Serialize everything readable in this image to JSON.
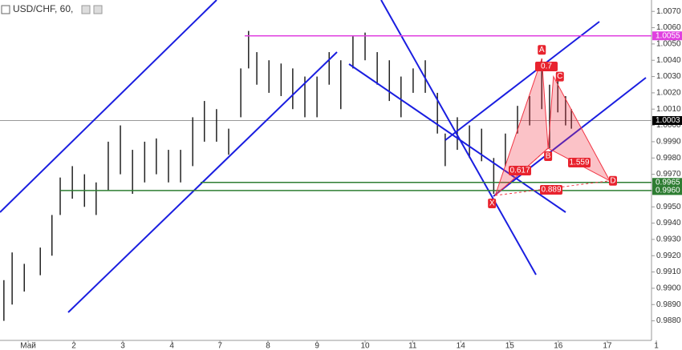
{
  "chart_data": {
    "type": "range-bar",
    "title": "USD/CHF, 60,",
    "color": "#222",
    "x": [
      0.08,
      0.25,
      0.5,
      0.83,
      1.07,
      1.24,
      1.49,
      1.74,
      1.98,
      2.23,
      2.48,
      2.73,
      2.98,
      3.22,
      3.47,
      3.72,
      3.97,
      4.21,
      4.46,
      4.71,
      4.96,
      5.12,
      5.29,
      5.54,
      5.79,
      6.03,
      6.28,
      6.53,
      6.78,
      7.02,
      7.27,
      7.52,
      7.77,
      8.02,
      8.26,
      8.51,
      8.76,
      9.01,
      9.17,
      9.42,
      9.67,
      9.92,
      10.17,
      10.41,
      10.66,
      10.91,
      11.16,
      11.32,
      11.49,
      11.65,
      11.77
    ],
    "low": [
      0.988,
      0.989,
      0.9898,
      0.9908,
      0.992,
      0.9945,
      0.9955,
      0.995,
      0.9945,
      0.996,
      0.997,
      0.9958,
      0.9965,
      0.997,
      0.9965,
      0.9965,
      0.9975,
      0.999,
      0.999,
      0.9982,
      1.0005,
      1.0035,
      1.0025,
      1.002,
      1.0018,
      1.001,
      1.0005,
      1.0005,
      1.0025,
      1.001,
      1.0035,
      1.004,
      1.0025,
      1.0015,
      1.0005,
      1.002,
      1.002,
      0.9995,
      0.9975,
      0.9985,
      0.998,
      0.9978,
      0.9958,
      0.9975,
      0.9995,
      1.0,
      1.001,
      0.9986,
      1.0008,
      1.0,
      0.9998
    ],
    "high": [
      0.9905,
      0.9922,
      0.9915,
      0.9925,
      0.9945,
      0.9968,
      0.9975,
      0.997,
      0.9965,
      0.999,
      1.0,
      0.9985,
      0.999,
      0.9992,
      0.9985,
      0.9985,
      1.0005,
      1.0015,
      1.001,
      0.9998,
      1.0035,
      1.0058,
      1.0045,
      1.004,
      1.0038,
      1.0035,
      1.003,
      1.003,
      1.0045,
      1.004,
      1.0055,
      1.0057,
      1.0045,
      1.004,
      1.003,
      1.0035,
      1.004,
      1.002,
      0.9995,
      1.0005,
      1.0,
      0.9998,
      0.998,
      0.9995,
      1.0012,
      1.0018,
      1.0041,
      1.0025,
      1.003,
      1.0018,
      1.001
    ],
    "xlim": [
      0,
      13.42
    ],
    "ylim": [
      0.9868,
      1.0077
    ],
    "xticks": [
      {
        "value": 0.58,
        "label": "Май"
      },
      {
        "value": 1.52,
        "label": "2"
      },
      {
        "value": 2.53,
        "label": "3"
      },
      {
        "value": 3.54,
        "label": "4"
      },
      {
        "value": 4.53,
        "label": "7"
      },
      {
        "value": 5.52,
        "label": "8"
      },
      {
        "value": 6.53,
        "label": "9"
      },
      {
        "value": 7.52,
        "label": "10"
      },
      {
        "value": 8.5,
        "label": "11"
      },
      {
        "value": 9.49,
        "label": "14"
      },
      {
        "value": 10.5,
        "label": "15"
      },
      {
        "value": 11.5,
        "label": "16"
      },
      {
        "value": 12.51,
        "label": "17"
      },
      {
        "value": 13.52,
        "label": "1"
      }
    ],
    "yticks": [
      {
        "value": 0.988,
        "label": "0.9880"
      },
      {
        "value": 0.989,
        "label": "0.9890"
      },
      {
        "value": 0.99,
        "label": "0.9900"
      },
      {
        "value": 0.991,
        "label": "0.9910"
      },
      {
        "value": 0.992,
        "label": "0.9920"
      },
      {
        "value": 0.993,
        "label": "0.9930"
      },
      {
        "value": 0.994,
        "label": "0.9940"
      },
      {
        "value": 0.995,
        "label": "0.9950"
      },
      {
        "value": 0.996,
        "label": "0.9960"
      },
      {
        "value": 0.997,
        "label": "0.9970"
      },
      {
        "value": 0.998,
        "label": "0.9980"
      },
      {
        "value": 0.999,
        "label": "0.9990"
      },
      {
        "value": 1.0,
        "label": "1.0000"
      },
      {
        "value": 1.001,
        "label": "1.0010"
      },
      {
        "value": 1.002,
        "label": "1.0020"
      },
      {
        "value": 1.003,
        "label": "1.0030"
      },
      {
        "value": 1.004,
        "label": "1.0040"
      },
      {
        "value": 1.005,
        "label": "1.0050"
      },
      {
        "value": 1.006,
        "label": "1.0060"
      },
      {
        "value": 1.007,
        "label": "1.0070"
      }
    ],
    "levels": [
      {
        "value": 1.0055,
        "label": "1.0055",
        "color": "#e040e0"
      },
      {
        "value": 0.9965,
        "label": "0.9965",
        "color": "#2e7d32"
      },
      {
        "value": 0.996,
        "label": "0.9960",
        "color": "#2e7d32"
      }
    ],
    "last_price": {
      "value": 1.0003,
      "label": "1.0003"
    },
    "pattern_points": [
      {
        "label": "X",
        "x": 10.2,
        "y": 0.9957
      },
      {
        "label": "A",
        "x": 11.16,
        "y": 1.0041
      },
      {
        "label": "B",
        "x": 11.29,
        "y": 0.9986
      },
      {
        "label": "C",
        "x": 11.4,
        "y": 1.003
      },
      {
        "label": "D",
        "x": 12.56,
        "y": 0.9966
      }
    ],
    "ratios": [
      0.617,
      0.7,
      1.559,
      0.889
    ]
  }
}
